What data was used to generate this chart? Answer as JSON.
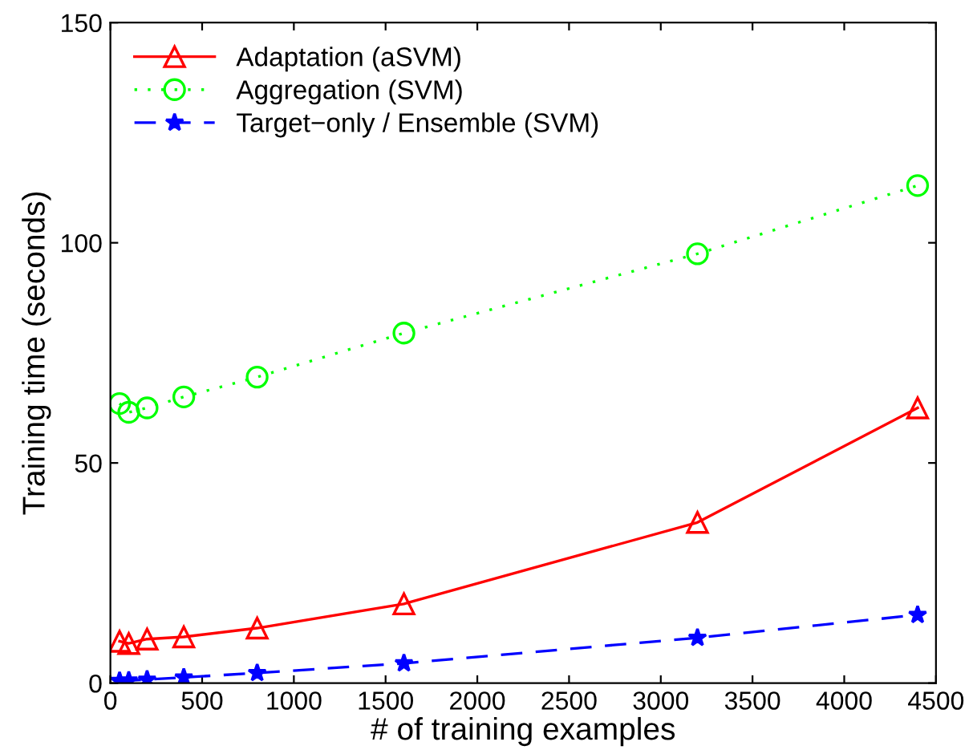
{
  "chart_data": {
    "type": "line",
    "xlabel": "# of training examples",
    "ylabel": "Training time (seconds)",
    "x": [
      50,
      100,
      200,
      400,
      800,
      1600,
      3200,
      4400
    ],
    "series": [
      {
        "name": "Adaptation (aSVM)",
        "color": "#ff0000",
        "marker": "triangle",
        "line_style": "solid",
        "values": [
          9.5,
          9,
          10,
          10.5,
          12.5,
          18,
          36.5,
          62.5
        ]
      },
      {
        "name": "Aggregation (SVM)",
        "color": "#00ff00",
        "marker": "circle",
        "line_style": "dotted",
        "values": [
          63.5,
          61.5,
          62.5,
          65,
          69.5,
          79.5,
          97.5,
          113
        ]
      },
      {
        "name": "Target−only / Ensemble (SVM)",
        "color": "#0000ff",
        "marker": "star",
        "line_style": "dashed",
        "values": [
          0.5,
          0.6,
          0.8,
          1.3,
          2.3,
          4.5,
          10.3,
          15.5
        ]
      }
    ],
    "xlim": [
      0,
      4500
    ],
    "xticks": [
      0,
      500,
      1000,
      1500,
      2000,
      2500,
      3000,
      3500,
      4000,
      4500
    ],
    "ylim": [
      0,
      150
    ],
    "yticks": [
      0,
      50,
      100,
      150
    ],
    "grid": false,
    "legend": "top left"
  }
}
